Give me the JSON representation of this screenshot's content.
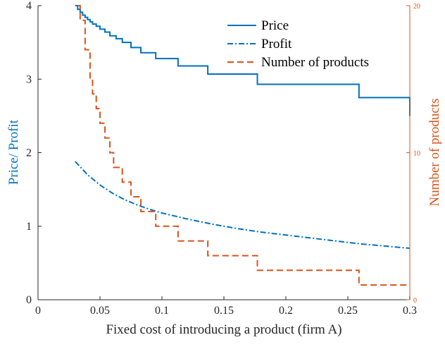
{
  "chart_data": {
    "type": "line",
    "xlabel": "Fixed cost of introducing a product (firm A)",
    "ylabel_left": "Price/ Profit",
    "ylabel_right": "Number of products",
    "xlim": [
      0,
      0.3
    ],
    "ylim_left": [
      0,
      4
    ],
    "ylim_right": [
      0,
      20
    ],
    "x_ticks": [
      "0",
      "0.05",
      "0.1",
      "0.15",
      "0.2",
      "0.25",
      "0.3"
    ],
    "x_tick_values": [
      0,
      0.05,
      0.1,
      0.15,
      0.2,
      0.25,
      0.3
    ],
    "y_left_ticks": [
      "0",
      "1",
      "2",
      "3",
      "4"
    ],
    "y_left_tick_values": [
      0,
      1,
      2,
      3,
      4
    ],
    "y_right_ticks": [
      "0",
      "10",
      "20"
    ],
    "y_right_tick_values": [
      0,
      10,
      20
    ],
    "grid": false,
    "legend_position": "top-right",
    "colors": {
      "price": "#0072BD",
      "profit": "#0072BD",
      "products": "#D95319",
      "axis": "#262626"
    },
    "series": [
      {
        "name": "Price",
        "axis": "left",
        "style": "solid",
        "x": [
          0.03,
          0.032,
          0.034,
          0.036,
          0.038,
          0.04,
          0.042,
          0.044,
          0.047,
          0.05,
          0.054,
          0.058,
          0.063,
          0.068,
          0.075,
          0.083,
          0.095,
          0.113,
          0.137,
          0.177,
          0.259,
          0.3
        ],
        "y": [
          4.0,
          3.95,
          3.91,
          3.87,
          3.84,
          3.81,
          3.78,
          3.75,
          3.72,
          3.68,
          3.64,
          3.59,
          3.55,
          3.5,
          3.43,
          3.36,
          3.28,
          3.18,
          3.07,
          2.93,
          2.75,
          2.5
        ]
      },
      {
        "name": "Profit",
        "axis": "left",
        "style": "dashdot",
        "x": [
          0.03,
          0.04,
          0.05,
          0.06,
          0.07,
          0.08,
          0.09,
          0.1,
          0.12,
          0.14,
          0.16,
          0.18,
          0.2,
          0.22,
          0.24,
          0.26,
          0.28,
          0.3
        ],
        "y": [
          1.88,
          1.7,
          1.56,
          1.45,
          1.36,
          1.29,
          1.23,
          1.18,
          1.1,
          1.03,
          0.97,
          0.92,
          0.88,
          0.84,
          0.8,
          0.76,
          0.73,
          0.7
        ]
      },
      {
        "name": "Number of products",
        "axis": "right",
        "style": "dashed",
        "x": [
          0.032,
          0.034,
          0.038,
          0.042,
          0.044,
          0.047,
          0.05,
          0.054,
          0.058,
          0.061,
          0.063,
          0.068,
          0.075,
          0.083,
          0.095,
          0.113,
          0.137,
          0.177,
          0.259
        ],
        "y": [
          20,
          19,
          17,
          15,
          14,
          13,
          12,
          11,
          10,
          9,
          9,
          8,
          7,
          6,
          5,
          4,
          3,
          2,
          1
        ],
        "xmax": 0.3
      }
    ]
  }
}
